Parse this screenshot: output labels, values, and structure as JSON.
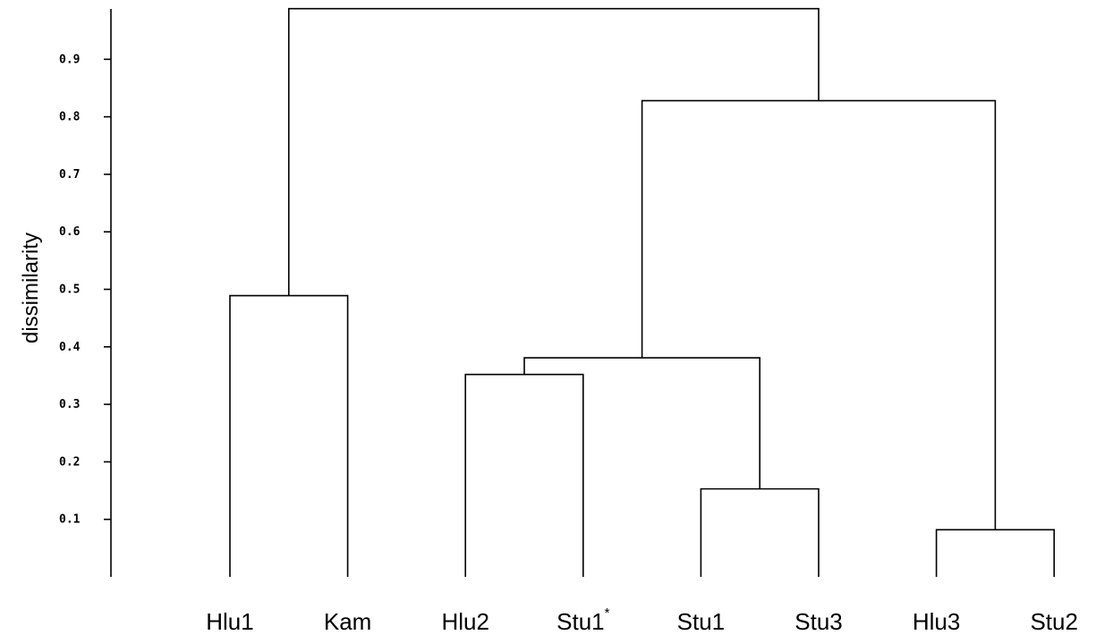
{
  "chart_data": {
    "type": "dendrogram",
    "title": "",
    "ylabel": "dissimilarity",
    "xlabel": "",
    "ylim": [
      0,
      0.99
    ],
    "yticks": [
      "0.1",
      "0.2",
      "0.3",
      "0.4",
      "0.5",
      "0.6",
      "0.7",
      "0.8",
      "0.9"
    ],
    "leaves": [
      {
        "main": "Hlu1",
        "sup": ""
      },
      {
        "main": "Kam",
        "sup": ""
      },
      {
        "main": "Hlu2",
        "sup": ""
      },
      {
        "main": "Stu1",
        "sup": "*"
      },
      {
        "main": "Stu1",
        "sup": ""
      },
      {
        "main": "Stu3",
        "sup": ""
      },
      {
        "main": "Hlu3",
        "sup": ""
      },
      {
        "main": "Stu2",
        "sup": ""
      }
    ],
    "merges": [
      {
        "id": "n1",
        "left": "Hlu3",
        "right": "Stu2",
        "height": 0.082
      },
      {
        "id": "n2",
        "left": "Stu1",
        "right": "Stu3",
        "height": 0.153
      },
      {
        "id": "n3",
        "left": "Hlu2",
        "right": "Stu1*",
        "height": 0.352
      },
      {
        "id": "n4",
        "left": "n3",
        "right": "n2",
        "height": 0.381
      },
      {
        "id": "n5",
        "left": "Hlu1",
        "right": "Kam",
        "height": 0.489
      },
      {
        "id": "n6",
        "left": "n4",
        "right": "n1",
        "height": 0.828
      },
      {
        "id": "n7",
        "left": "n5",
        "right": "n6",
        "height": 0.988
      }
    ]
  }
}
